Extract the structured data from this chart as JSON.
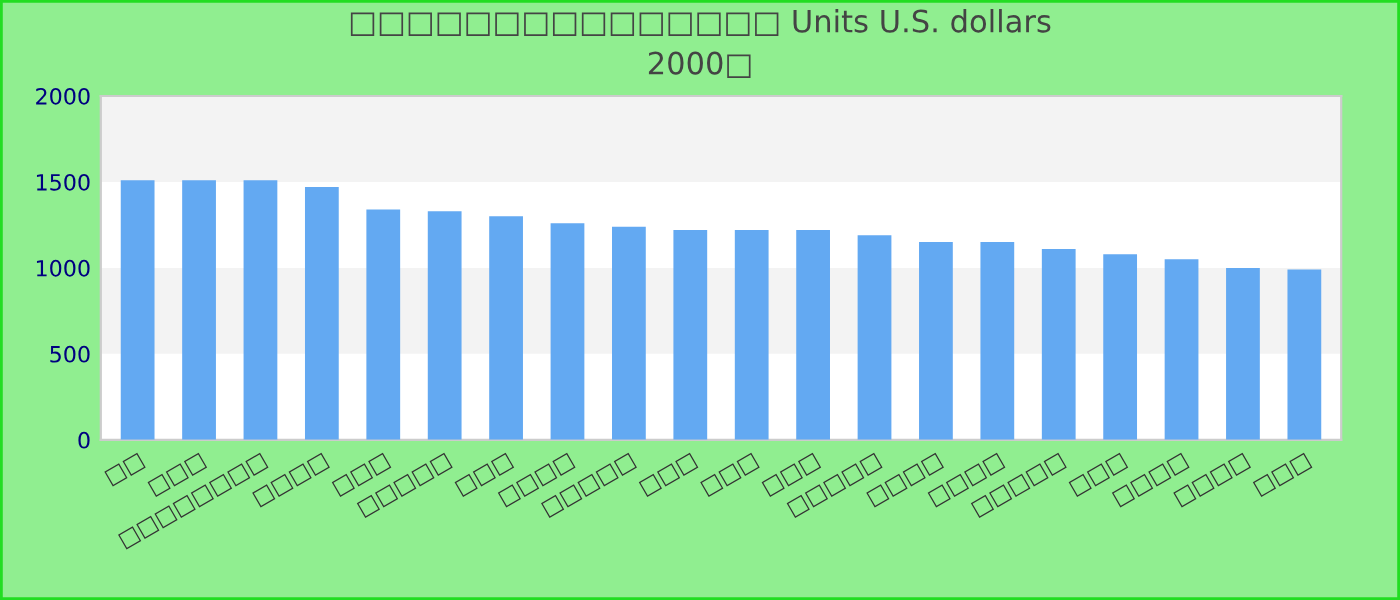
{
  "chart_data": {
    "type": "bar",
    "title": "□□□□□□□□□□□□□□□ Units U.S. dollars",
    "subtitle": "2000□",
    "categories": [
      "□□",
      "□□□",
      "□□□□□□□□",
      "□□□□",
      "□□□",
      "□□□□□",
      "□□□",
      "□□□□",
      "□□□□□",
      "□□□",
      "□□□",
      "□□□",
      "□□□□□",
      "□□□□",
      "□□□□",
      "□□□□□",
      "□□□",
      "□□□□",
      "□□□□",
      "□□□"
    ],
    "values": [
      1510,
      1510,
      1510,
      1470,
      1340,
      1330,
      1300,
      1260,
      1240,
      1220,
      1220,
      1220,
      1190,
      1150,
      1150,
      1110,
      1080,
      1050,
      1000,
      990
    ],
    "color": "#63a9f2",
    "ylim": [
      0,
      2000
    ],
    "yticks": [
      0,
      500,
      1000,
      1500,
      2000
    ],
    "bands": [
      {
        "axis": "y",
        "from": 500,
        "to": 1000,
        "color": "#f3f3f3"
      },
      {
        "axis": "y",
        "from": 1500,
        "to": 2000,
        "color": "#f3f3f3"
      }
    ]
  }
}
